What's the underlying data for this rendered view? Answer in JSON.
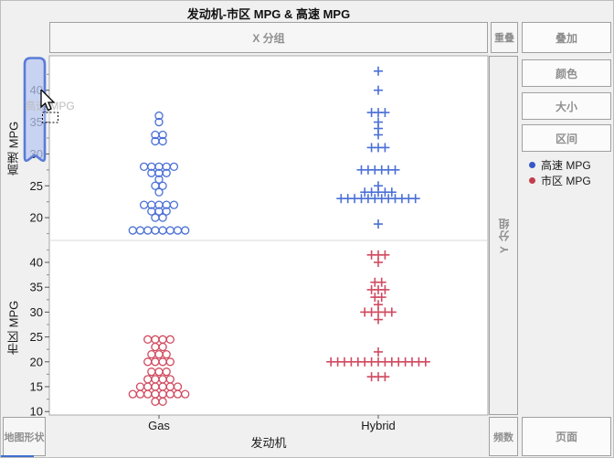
{
  "window": {
    "title": "发动机-市区 MPG & 高速 MPG",
    "background": "#f0f0f0"
  },
  "zones": {
    "x_group": "X 分组",
    "overlap": "重叠",
    "y_group": "Y 分组",
    "map_shape": "地图形状",
    "freq": "频数"
  },
  "buttons": {
    "overlay": "叠加",
    "color": "颜色",
    "size": "大小",
    "interval": "区间",
    "page": "页面"
  },
  "legend": [
    {
      "label": "高速 MPG",
      "color": "#3558c8"
    },
    {
      "label": "市区 MPG",
      "color": "#c43d4b"
    }
  ],
  "drag": {
    "ghost_text": "高速 MPG"
  },
  "chart_data": {
    "type": "scatter",
    "title": "发动机-市区 MPG & 高速 MPG",
    "x_axis_label": "发动机",
    "x_categories": [
      "Gas",
      "Hybrid"
    ],
    "marker_by_category": {
      "Gas": "circle",
      "Hybrid": "plus"
    },
    "grid": false,
    "legend_position": "right",
    "panels": [
      {
        "y_label": "高速 MPG",
        "color": "#4a6fd6",
        "y_ticks": [
          40,
          35,
          30,
          25,
          20
        ],
        "y_range": [
          16.4,
          45.4
        ],
        "series": [
          {
            "category": "Gas",
            "marker": "circle",
            "stacks": [
              [
                36,
                1
              ],
              [
                35,
                1
              ],
              [
                33,
                2
              ],
              [
                32,
                2
              ],
              [
                28,
                5
              ],
              [
                27,
                3
              ],
              [
                26,
                1
              ],
              [
                25,
                2
              ],
              [
                24,
                1
              ],
              [
                22,
                5
              ],
              [
                21,
                3
              ],
              [
                20,
                2
              ],
              [
                18,
                8
              ]
            ]
          },
          {
            "category": "Hybrid",
            "marker": "plus",
            "stacks": [
              [
                43,
                1
              ],
              [
                40,
                1
              ],
              [
                36.5,
                3
              ],
              [
                35,
                1
              ],
              [
                34,
                1
              ],
              [
                33,
                1
              ],
              [
                31,
                3
              ],
              [
                27.5,
                6
              ],
              [
                25,
                1
              ],
              [
                24,
                5
              ],
              [
                23,
                12
              ],
              [
                19,
                1
              ]
            ]
          }
        ]
      },
      {
        "y_label": "市区 MPG",
        "color": "#d04a5f",
        "y_ticks": [
          40,
          35,
          30,
          25,
          20,
          15,
          10
        ],
        "y_range": [
          9.2,
          44.4
        ],
        "series": [
          {
            "category": "Gas",
            "marker": "circle",
            "stacks": [
              [
                24.5,
                4
              ],
              [
                23,
                2
              ],
              [
                21.5,
                3
              ],
              [
                20,
                4
              ],
              [
                18,
                3
              ],
              [
                16.5,
                4
              ],
              [
                15,
                6
              ],
              [
                13.5,
                8
              ],
              [
                12,
                2
              ]
            ]
          },
          {
            "category": "Hybrid",
            "marker": "plus",
            "stacks": [
              [
                41.5,
                3
              ],
              [
                40,
                1
              ],
              [
                36,
                2
              ],
              [
                34.5,
                3
              ],
              [
                33,
                2
              ],
              [
                31.5,
                1
              ],
              [
                30,
                5
              ],
              [
                28.5,
                1
              ],
              [
                22,
                1
              ],
              [
                20,
                15
              ],
              [
                17,
                3
              ]
            ]
          }
        ]
      }
    ]
  }
}
